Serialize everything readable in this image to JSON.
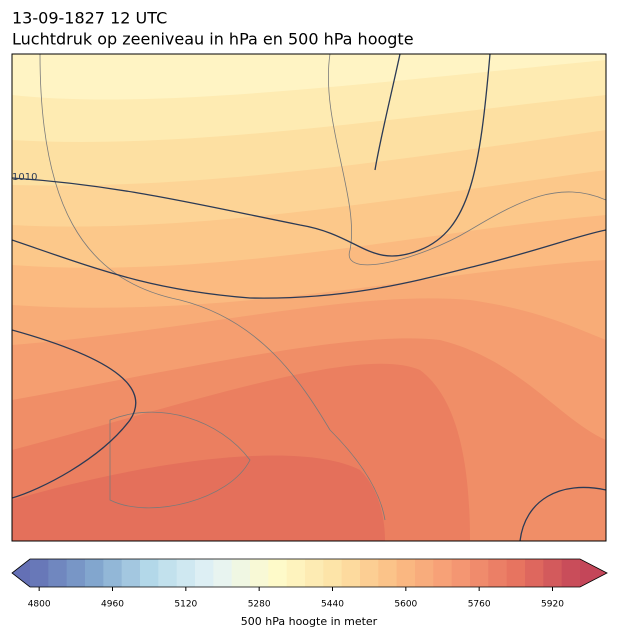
{
  "header": {
    "title_line1": "13-09-1827 12 UTC",
    "title_line2": "Luchtdruk op zeeniveau in hPa en 500 hPa hoogte"
  },
  "map": {
    "contour_label": "1010"
  },
  "colorbar": {
    "label": "500 hPa hoogte in meter",
    "clim": [
      4780,
      5980
    ],
    "levels": 30,
    "extend": "both",
    "ticks": [
      4800,
      4960,
      5120,
      5280,
      5440,
      5600,
      5760,
      5920
    ],
    "colormap": [
      "#6470b5",
      "#7fa3cc",
      "#b6dbea",
      "#e4f3f6",
      "#fefbcb",
      "#fde3a6",
      "#fbbd84",
      "#f59873",
      "#e6725f",
      "#c44659"
    ]
  }
}
